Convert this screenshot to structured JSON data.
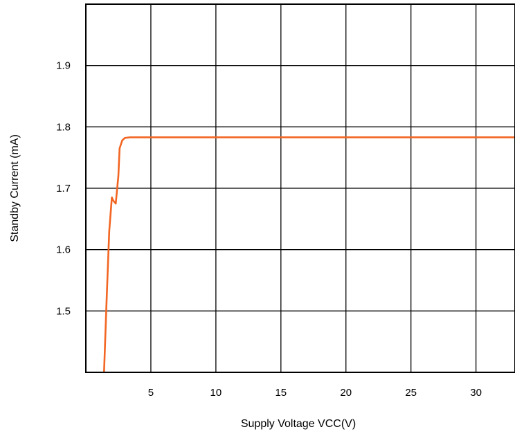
{
  "chart_data": {
    "type": "line",
    "title": "",
    "xlabel": "Supply Voltage VCC(V)",
    "ylabel": "Standby Current (mA)",
    "xlim": [
      0,
      33
    ],
    "ylim": [
      1.4,
      2.0
    ],
    "x_ticks": [
      5,
      10,
      15,
      20,
      25,
      30
    ],
    "x_tick_labels": [
      "5",
      "10",
      "15",
      "20",
      "25",
      "30"
    ],
    "y_ticks": [
      1.5,
      1.6,
      1.7,
      1.8,
      1.9
    ],
    "y_tick_labels": [
      "1.5",
      "1.6",
      "1.7",
      "1.8",
      "1.9"
    ],
    "grid": true,
    "legend": "none",
    "series": [
      {
        "color": "#f26522",
        "x": [
          1.4,
          1.6,
          1.8,
          2.0,
          2.1,
          2.3,
          2.5,
          2.6,
          2.8,
          3.0,
          3.4,
          5,
          10,
          15,
          20,
          25,
          30,
          33
        ],
        "y": [
          1.4,
          1.52,
          1.63,
          1.685,
          1.68,
          1.675,
          1.72,
          1.765,
          1.778,
          1.782,
          1.783,
          1.783,
          1.783,
          1.783,
          1.783,
          1.783,
          1.783,
          1.783
        ]
      }
    ]
  }
}
